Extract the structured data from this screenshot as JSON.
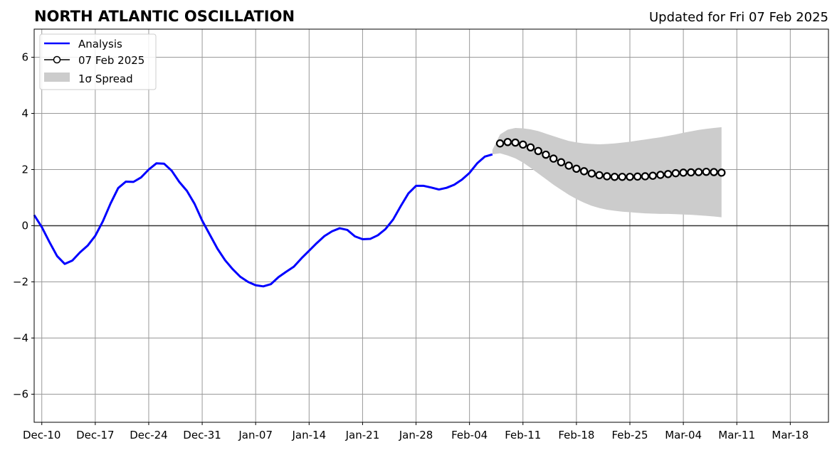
{
  "chart_data": {
    "type": "line",
    "title": "NORTH ATLANTIC OSCILLATION",
    "subtitle": "Updated for Fri 07 Feb 2025",
    "xlabel": "",
    "ylabel": "",
    "xlim": [
      "2024-12-09",
      "2025-03-23"
    ],
    "ylim": [
      -7,
      7
    ],
    "x_ticks": [
      {
        "date": "2024-12-10",
        "label": "Dec-10"
      },
      {
        "date": "2024-12-17",
        "label": "Dec-17"
      },
      {
        "date": "2024-12-24",
        "label": "Dec-24"
      },
      {
        "date": "2024-12-31",
        "label": "Dec-31"
      },
      {
        "date": "2025-01-07",
        "label": "Jan-07"
      },
      {
        "date": "2025-01-14",
        "label": "Jan-14"
      },
      {
        "date": "2025-01-21",
        "label": "Jan-21"
      },
      {
        "date": "2025-01-28",
        "label": "Jan-28"
      },
      {
        "date": "2025-02-04",
        "label": "Feb-04"
      },
      {
        "date": "2025-02-11",
        "label": "Feb-11"
      },
      {
        "date": "2025-02-18",
        "label": "Feb-18"
      },
      {
        "date": "2025-02-25",
        "label": "Feb-25"
      },
      {
        "date": "2025-03-04",
        "label": "Mar-04"
      },
      {
        "date": "2025-03-11",
        "label": "Mar-11"
      },
      {
        "date": "2025-03-18",
        "label": "Mar-18"
      }
    ],
    "y_ticks": [
      {
        "value": 6,
        "label": "6"
      },
      {
        "value": 4,
        "label": "4"
      },
      {
        "value": 2,
        "label": "2"
      },
      {
        "value": 0,
        "label": "0"
      },
      {
        "value": -2,
        "label": "−2"
      },
      {
        "value": -4,
        "label": "−4"
      },
      {
        "value": -6,
        "label": "−6"
      }
    ],
    "grid": true,
    "legend_position": "top-left",
    "series": [
      {
        "name": "Analysis",
        "style": "line",
        "color": "#0000ff",
        "points": [
          [
            "2024-12-09",
            0.38
          ],
          [
            "2024-12-10",
            -0.05
          ],
          [
            "2024-12-11",
            -0.58
          ],
          [
            "2024-12-12",
            -1.08
          ],
          [
            "2024-12-13",
            -1.36
          ],
          [
            "2024-12-14",
            -1.24
          ],
          [
            "2024-12-15",
            -0.95
          ],
          [
            "2024-12-16",
            -0.71
          ],
          [
            "2024-12-17",
            -0.36
          ],
          [
            "2024-12-18",
            0.16
          ],
          [
            "2024-12-19",
            0.79
          ],
          [
            "2024-12-20",
            1.34
          ],
          [
            "2024-12-21",
            1.57
          ],
          [
            "2024-12-22",
            1.56
          ],
          [
            "2024-12-23",
            1.72
          ],
          [
            "2024-12-24",
            2.0
          ],
          [
            "2024-12-25",
            2.22
          ],
          [
            "2024-12-26",
            2.21
          ],
          [
            "2024-12-27",
            1.96
          ],
          [
            "2024-12-28",
            1.56
          ],
          [
            "2024-12-29",
            1.24
          ],
          [
            "2024-12-30",
            0.78
          ],
          [
            "2024-12-31",
            0.18
          ],
          [
            "2025-01-01",
            -0.32
          ],
          [
            "2025-01-02",
            -0.82
          ],
          [
            "2025-01-03",
            -1.23
          ],
          [
            "2025-01-04",
            -1.55
          ],
          [
            "2025-01-05",
            -1.82
          ],
          [
            "2025-01-06",
            -2.0
          ],
          [
            "2025-01-07",
            -2.12
          ],
          [
            "2025-01-08",
            -2.16
          ],
          [
            "2025-01-09",
            -2.08
          ],
          [
            "2025-01-10",
            -1.83
          ],
          [
            "2025-01-11",
            -1.64
          ],
          [
            "2025-01-12",
            -1.46
          ],
          [
            "2025-01-13",
            -1.16
          ],
          [
            "2025-01-14",
            -0.89
          ],
          [
            "2025-01-15",
            -0.62
          ],
          [
            "2025-01-16",
            -0.37
          ],
          [
            "2025-01-17",
            -0.2
          ],
          [
            "2025-01-18",
            -0.09
          ],
          [
            "2025-01-19",
            -0.15
          ],
          [
            "2025-01-20",
            -0.38
          ],
          [
            "2025-01-21",
            -0.48
          ],
          [
            "2025-01-22",
            -0.47
          ],
          [
            "2025-01-23",
            -0.34
          ],
          [
            "2025-01-24",
            -0.12
          ],
          [
            "2025-01-25",
            0.22
          ],
          [
            "2025-01-26",
            0.7
          ],
          [
            "2025-01-27",
            1.15
          ],
          [
            "2025-01-28",
            1.42
          ],
          [
            "2025-01-29",
            1.42
          ],
          [
            "2025-01-30",
            1.36
          ],
          [
            "2025-01-31",
            1.29
          ],
          [
            "2025-02-01",
            1.35
          ],
          [
            "2025-02-02",
            1.46
          ],
          [
            "2025-02-03",
            1.64
          ],
          [
            "2025-02-04",
            1.88
          ],
          [
            "2025-02-05",
            2.22
          ],
          [
            "2025-02-06",
            2.46
          ],
          [
            "2025-02-07",
            2.54
          ]
        ]
      },
      {
        "name": "07 Feb 2025",
        "style": "line-markers",
        "color": "#000000",
        "marker_fill": "#ffffff",
        "points": [
          [
            "2025-02-08",
            2.93
          ],
          [
            "2025-02-09",
            2.98
          ],
          [
            "2025-02-10",
            2.96
          ],
          [
            "2025-02-11",
            2.89
          ],
          [
            "2025-02-12",
            2.79
          ],
          [
            "2025-02-13",
            2.66
          ],
          [
            "2025-02-14",
            2.53
          ],
          [
            "2025-02-15",
            2.39
          ],
          [
            "2025-02-16",
            2.26
          ],
          [
            "2025-02-17",
            2.14
          ],
          [
            "2025-02-18",
            2.03
          ],
          [
            "2025-02-19",
            1.94
          ],
          [
            "2025-02-20",
            1.86
          ],
          [
            "2025-02-21",
            1.8
          ],
          [
            "2025-02-22",
            1.76
          ],
          [
            "2025-02-23",
            1.74
          ],
          [
            "2025-02-24",
            1.74
          ],
          [
            "2025-02-25",
            1.74
          ],
          [
            "2025-02-26",
            1.75
          ],
          [
            "2025-02-27",
            1.76
          ],
          [
            "2025-02-28",
            1.78
          ],
          [
            "2025-03-01",
            1.81
          ],
          [
            "2025-03-02",
            1.84
          ],
          [
            "2025-03-03",
            1.87
          ],
          [
            "2025-03-04",
            1.89
          ],
          [
            "2025-03-05",
            1.9
          ],
          [
            "2025-03-06",
            1.91
          ],
          [
            "2025-03-07",
            1.92
          ],
          [
            "2025-03-08",
            1.91
          ],
          [
            "2025-03-09",
            1.89
          ]
        ]
      }
    ],
    "spread": {
      "name": "1σ Spread",
      "color": "#cccccc",
      "points": [
        [
          "2025-02-07",
          2.54,
          2.7
        ],
        [
          "2025-02-08",
          2.58,
          3.25
        ],
        [
          "2025-02-09",
          2.5,
          3.42
        ],
        [
          "2025-02-10",
          2.4,
          3.48
        ],
        [
          "2025-02-11",
          2.25,
          3.47
        ],
        [
          "2025-02-12",
          2.06,
          3.43
        ],
        [
          "2025-02-13",
          1.86,
          3.37
        ],
        [
          "2025-02-14",
          1.66,
          3.28
        ],
        [
          "2025-02-15",
          1.46,
          3.19
        ],
        [
          "2025-02-16",
          1.28,
          3.1
        ],
        [
          "2025-02-17",
          1.1,
          3.02
        ],
        [
          "2025-02-18",
          0.95,
          2.97
        ],
        [
          "2025-02-19",
          0.82,
          2.93
        ],
        [
          "2025-02-20",
          0.71,
          2.91
        ],
        [
          "2025-02-21",
          0.63,
          2.9
        ],
        [
          "2025-02-22",
          0.57,
          2.91
        ],
        [
          "2025-02-23",
          0.53,
          2.93
        ],
        [
          "2025-02-24",
          0.5,
          2.96
        ],
        [
          "2025-02-25",
          0.48,
          2.99
        ],
        [
          "2025-02-26",
          0.46,
          3.03
        ],
        [
          "2025-02-27",
          0.44,
          3.07
        ],
        [
          "2025-02-28",
          0.43,
          3.11
        ],
        [
          "2025-03-01",
          0.42,
          3.15
        ],
        [
          "2025-03-02",
          0.42,
          3.2
        ],
        [
          "2025-03-03",
          0.41,
          3.25
        ],
        [
          "2025-03-04",
          0.4,
          3.31
        ],
        [
          "2025-03-05",
          0.39,
          3.36
        ],
        [
          "2025-03-06",
          0.37,
          3.41
        ],
        [
          "2025-03-07",
          0.35,
          3.45
        ],
        [
          "2025-03-08",
          0.33,
          3.48
        ],
        [
          "2025-03-09",
          0.3,
          3.51
        ]
      ]
    }
  }
}
